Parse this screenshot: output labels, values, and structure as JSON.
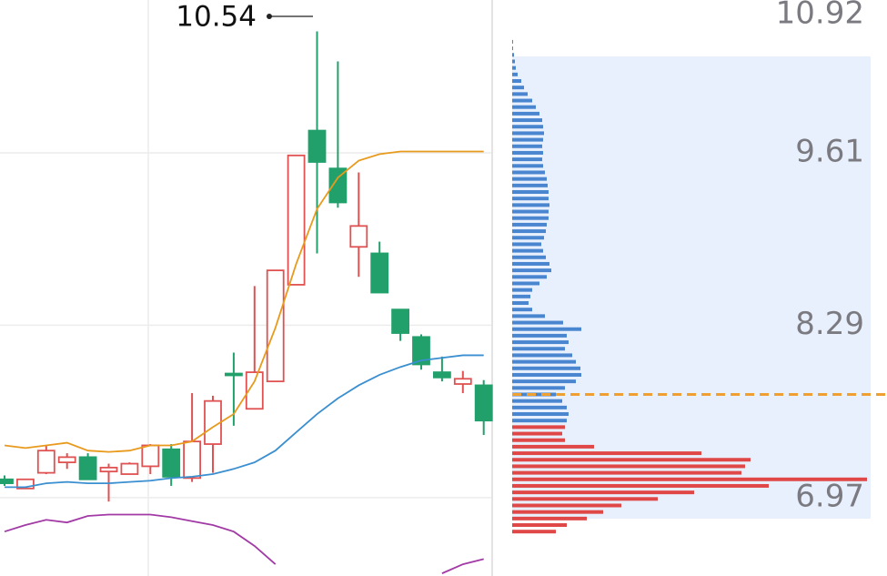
{
  "chart_data": {
    "type": "candlestick",
    "open": [
      7.11,
      7.04,
      7.16,
      7.24,
      7.28,
      7.17,
      7.15,
      7.21,
      7.34,
      7.12,
      7.38,
      7.92,
      7.65,
      7.86,
      8.6,
      9.78,
      9.49,
      8.89,
      8.84,
      8.41,
      8.2,
      7.93,
      7.84,
      7.83
    ],
    "high": [
      7.14,
      7.11,
      7.37,
      7.31,
      7.31,
      7.23,
      7.24,
      7.38,
      7.38,
      7.77,
      7.75,
      8.08,
      8.59,
      8.71,
      9.59,
      10.54,
      10.31,
      9.46,
      8.93,
      8.41,
      8.22,
      8.05,
      7.94,
      7.87
    ],
    "low": [
      7.06,
      7.04,
      7.15,
      7.19,
      7.11,
      6.94,
      7.15,
      7.15,
      7.06,
      7.09,
      7.16,
      7.52,
      7.65,
      7.86,
      8.6,
      8.84,
      9.19,
      8.66,
      8.54,
      8.17,
      7.95,
      7.86,
      7.77,
      7.45
    ],
    "close": [
      7.08,
      7.11,
      7.33,
      7.28,
      7.11,
      7.2,
      7.23,
      7.37,
      7.13,
      7.4,
      7.71,
      7.91,
      7.93,
      8.71,
      9.59,
      9.54,
      9.23,
      9.05,
      8.54,
      8.23,
      7.99,
      7.89,
      7.88,
      7.56
    ],
    "up_color": "#e05252",
    "down_color": "#22a06b",
    "series": [
      {
        "color": "#e89a1c",
        "values": [
          7.37,
          7.35,
          7.37,
          7.39,
          7.33,
          7.32,
          7.33,
          7.37,
          7.37,
          7.4,
          7.51,
          7.61,
          7.86,
          8.27,
          8.76,
          9.18,
          9.42,
          9.55,
          9.6,
          9.62,
          9.62,
          9.62,
          9.62,
          9.62
        ]
      },
      {
        "color": "#3a8fd0",
        "values": [
          7.05,
          7.05,
          7.08,
          7.09,
          7.08,
          7.08,
          7.09,
          7.1,
          7.12,
          7.13,
          7.15,
          7.19,
          7.24,
          7.33,
          7.47,
          7.61,
          7.73,
          7.83,
          7.91,
          7.97,
          8.02,
          8.04,
          8.06,
          8.06
        ]
      },
      {
        "color": "#a23aa6",
        "values": [
          6.71,
          6.76,
          6.8,
          6.78,
          6.83,
          6.84,
          6.84,
          6.84,
          6.82,
          6.79,
          6.76,
          6.71,
          6.6,
          6.46,
          null,
          null,
          null,
          null,
          null,
          null,
          null,
          6.39,
          6.46,
          6.5
        ]
      }
    ],
    "ylim": [
      6.37,
      10.78
    ],
    "yticks": [
      10.92,
      9.61,
      8.29,
      6.97
    ],
    "grid": true,
    "annotation_index": 15,
    "cost_line": 7.76,
    "cost_color": "#f0a030",
    "profile": {
      "prices": [
        10.46,
        10.41,
        10.36,
        10.31,
        10.26,
        10.21,
        10.16,
        10.11,
        10.06,
        10.01,
        9.96,
        9.91,
        9.86,
        9.81,
        9.76,
        9.71,
        9.66,
        9.61,
        9.56,
        9.51,
        9.46,
        9.41,
        9.36,
        9.31,
        9.26,
        9.21,
        9.16,
        9.11,
        9.06,
        9.01,
        8.96,
        8.91,
        8.86,
        8.81,
        8.76,
        8.71,
        8.66,
        8.61,
        8.56,
        8.51,
        8.46,
        8.41,
        8.36,
        8.31,
        8.26,
        8.21,
        8.16,
        8.11,
        8.06,
        8.01,
        7.96,
        7.91,
        7.86,
        7.81,
        7.76,
        7.71,
        7.66,
        7.61,
        7.56,
        7.51,
        7.46,
        7.41,
        7.36,
        7.31,
        7.26,
        7.21,
        7.16,
        7.11,
        7.06,
        7.01,
        6.96,
        6.91,
        6.86,
        6.81,
        6.76,
        6.71
      ],
      "volumes": [
        1,
        1,
        2,
        3,
        4,
        6,
        10,
        13,
        17,
        22,
        26,
        30,
        33,
        34,
        35,
        34,
        33,
        34,
        33,
        34,
        36,
        38,
        39,
        40,
        40,
        41,
        40,
        40,
        38,
        37,
        35,
        32,
        34,
        37,
        41,
        43,
        38,
        30,
        22,
        20,
        18,
        22,
        36,
        56,
        76,
        60,
        62,
        58,
        66,
        70,
        75,
        76,
        70,
        58,
        48,
        55,
        60,
        62,
        60,
        58,
        55,
        58,
        90,
        208,
        262,
        256,
        252,
        390,
        282,
        200,
        160,
        120,
        100,
        82,
        60,
        48
      ],
      "up_color": "#4a86d0",
      "down_color": "#e04848",
      "band_color": "#e8f0fd"
    }
  }
}
